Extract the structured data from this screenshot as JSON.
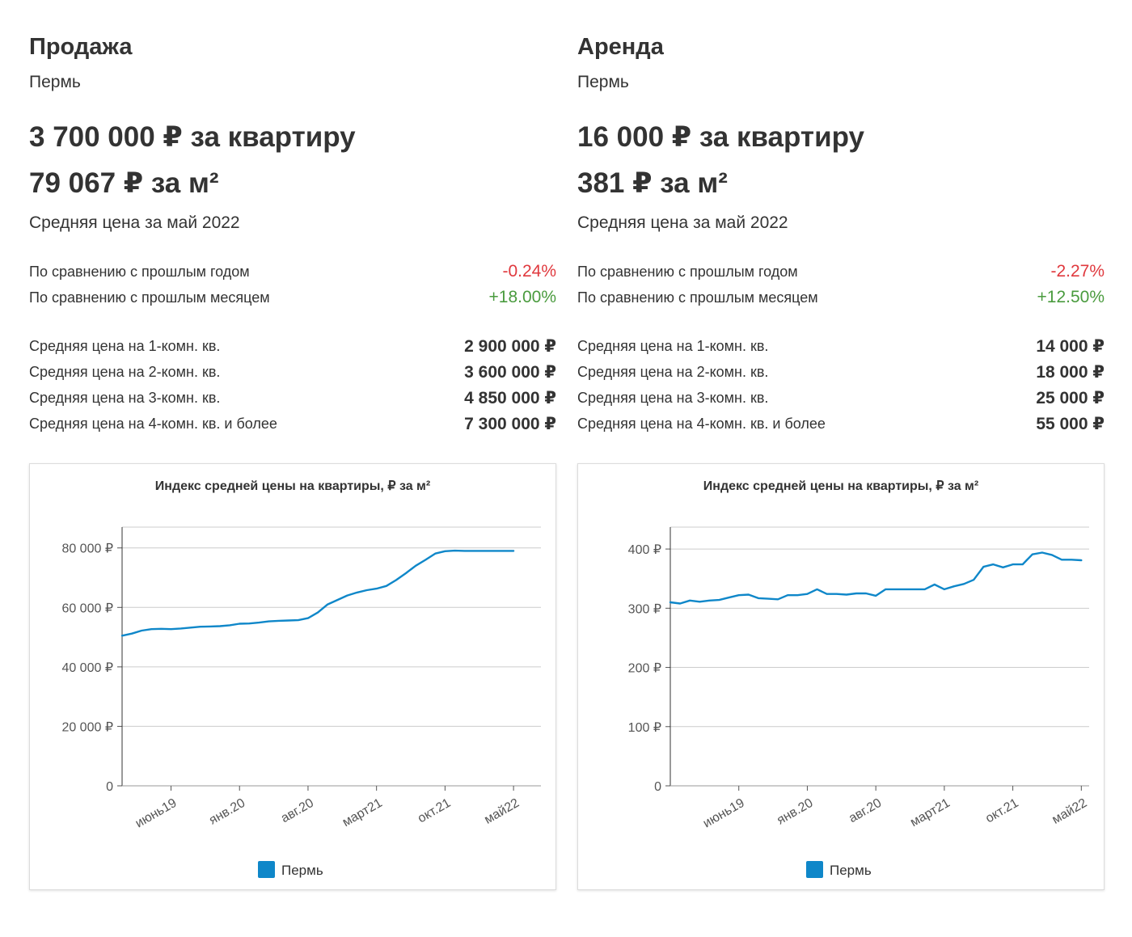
{
  "sale": {
    "title": "Продажа",
    "city": "Пермь",
    "price_flat": "3 700 000 ₽ за квартиру",
    "price_m2": "79 067 ₽ за м²",
    "period": "Средняя цена за май 2022",
    "yoy_label": "По сравнению с прошлым годом",
    "yoy_value": "-0.24%",
    "mom_label": "По сравнению с прошлым месяцем",
    "mom_value": "+18.00%",
    "rooms": [
      {
        "label": "Средняя цена на 1-комн. кв.",
        "value": "2 900 000 ₽"
      },
      {
        "label": "Средняя цена на 2-комн. кв.",
        "value": "3 600 000 ₽"
      },
      {
        "label": "Средняя цена на 3-комн. кв.",
        "value": "4 850 000 ₽"
      },
      {
        "label": "Средняя цена на 4-комн. кв. и более",
        "value": "7 300 000 ₽"
      }
    ]
  },
  "rent": {
    "title": "Аренда",
    "city": "Пермь",
    "price_flat": "16 000 ₽ за квартиру",
    "price_m2": "381 ₽ за м²",
    "period": "Средняя цена за май 2022",
    "yoy_label": "По сравнению с прошлым годом",
    "yoy_value": "-2.27%",
    "mom_label": "По сравнению с прошлым месяцем",
    "mom_value": "+12.50%",
    "rooms": [
      {
        "label": "Средняя цена на 1-комн. кв.",
        "value": "14 000 ₽"
      },
      {
        "label": "Средняя цена на 2-комн. кв.",
        "value": "18 000 ₽"
      },
      {
        "label": "Средняя цена на 3-комн. кв.",
        "value": "25 000 ₽"
      },
      {
        "label": "Средняя цена на 4-комн. кв. и более",
        "value": "55 000 ₽"
      }
    ]
  },
  "colors": {
    "series": "#0f87c9",
    "negative": "#e0393e",
    "positive": "#4a9b3e"
  },
  "chart_data": [
    {
      "type": "line",
      "title": "Индекс средней цены на квартиры, ₽ за м²",
      "ylim": [
        0,
        87000
      ],
      "yticks": [
        0,
        20000,
        40000,
        60000,
        80000
      ],
      "ytick_labels": [
        "0",
        "20 000 ₽",
        "40 000 ₽",
        "60 000 ₽",
        "80 000 ₽"
      ],
      "xlim": [
        0,
        42.8
      ],
      "xticks": [
        5,
        12,
        19,
        26,
        33,
        40
      ],
      "xtick_labels": [
        "июнь19",
        "янв.20",
        "авг.20",
        "март21",
        "окт.21",
        "май22"
      ],
      "legend": [
        "Пермь"
      ],
      "series": [
        {
          "name": "Пермь",
          "x": [
            0,
            1,
            2,
            3,
            4,
            5,
            6,
            7,
            8,
            9,
            10,
            11,
            12,
            13,
            14,
            15,
            16,
            17,
            18,
            19,
            20,
            21,
            22,
            23,
            24,
            25,
            26,
            27,
            28,
            29,
            30,
            31,
            32,
            33,
            34,
            35,
            36,
            37,
            38,
            39,
            40
          ],
          "values": [
            50500,
            51200,
            52200,
            52700,
            52800,
            52700,
            52900,
            53200,
            53500,
            53600,
            53700,
            54000,
            54500,
            54600,
            54900,
            55300,
            55500,
            55600,
            55700,
            56400,
            58300,
            61000,
            62500,
            64000,
            65000,
            65800,
            66300,
            67200,
            69200,
            71500,
            74000,
            76000,
            78100,
            78900,
            79100,
            79000,
            79000,
            79000,
            79000,
            79000,
            79000
          ]
        }
      ]
    },
    {
      "type": "line",
      "title": "Индекс средней цены на квартиры, ₽ за м²",
      "ylim": [
        0,
        437
      ],
      "yticks": [
        0,
        100,
        200,
        300,
        400
      ],
      "ytick_labels": [
        "0",
        "100 ₽",
        "200 ₽",
        "300 ₽",
        "400 ₽"
      ],
      "xlim": [
        0,
        42.8
      ],
      "xticks": [
        7,
        14,
        21,
        28,
        35,
        42
      ],
      "xtick_labels": [
        "июнь19",
        "янв.20",
        "авг.20",
        "март21",
        "окт.21",
        "май22"
      ],
      "legend": [
        "Пермь"
      ],
      "series": [
        {
          "name": "Пермь",
          "x": [
            0,
            1,
            2,
            3,
            4,
            5,
            6,
            7,
            8,
            9,
            10,
            11,
            12,
            13,
            14,
            15,
            16,
            17,
            18,
            19,
            20,
            21,
            22,
            23,
            24,
            25,
            26,
            27,
            28,
            29,
            30,
            31,
            32,
            33,
            34,
            35,
            36,
            37,
            38,
            39,
            40,
            41,
            42
          ],
          "values": [
            310,
            308,
            313,
            311,
            313,
            314,
            318,
            322,
            323,
            317,
            316,
            315,
            322,
            322,
            324,
            332,
            324,
            324,
            323,
            325,
            325,
            321,
            332,
            332,
            332,
            332,
            332,
            340,
            332,
            337,
            341,
            348,
            370,
            374,
            369,
            374,
            374,
            391,
            394,
            390,
            382,
            382,
            381
          ]
        }
      ]
    }
  ]
}
